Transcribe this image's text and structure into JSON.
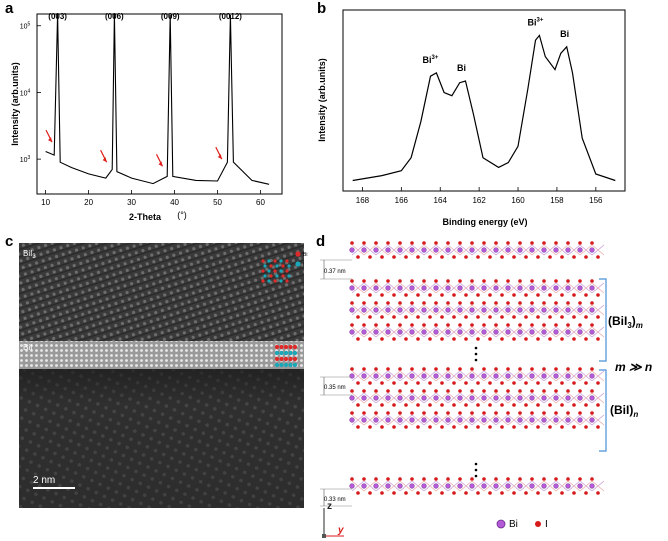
{
  "figure": {
    "panel_labels": [
      "a",
      "b",
      "c",
      "d"
    ]
  },
  "panel_a": {
    "ylabel": "Intensity (arb.units)",
    "xlabel": "2-Theta",
    "xunit": "(°)",
    "xticks": [
      "10",
      "20",
      "30",
      "40",
      "50",
      "60"
    ],
    "ytick_base": "10",
    "ytick_exps": [
      "3",
      "4",
      "5"
    ],
    "peak_labels": [
      "(003)",
      "(006)",
      "(009)",
      "(0012)"
    ],
    "arrow_color": "#e0201b"
  },
  "panel_b": {
    "ylabel": "Intensity (arb.units)",
    "xlabel": "Binding energy (eV)",
    "xticks": [
      "168",
      "166",
      "164",
      "162",
      "160",
      "158",
      "156"
    ],
    "peak_labels": [
      {
        "base": "Bi",
        "sup": "3+"
      },
      {
        "base": "Bi",
        "sup": ""
      },
      {
        "base": "Bi",
        "sup": "3+"
      },
      {
        "base": "Bi",
        "sup": ""
      }
    ]
  },
  "panel_c": {
    "label_top": "BiI",
    "label_top_sub": "3",
    "label_mid": "BiI",
    "legend": [
      "Bi",
      "I"
    ],
    "scalebar": "2 nm",
    "colors": {
      "bi": "#e02a2a",
      "i": "#1aa7b8"
    }
  },
  "panel_d": {
    "spacings": [
      "0.37 nm",
      "0.35 nm",
      "0.33 nm"
    ],
    "brace_top": {
      "base": "(BiI",
      "sub": "3",
      "close": ")",
      "var": "m"
    },
    "relation": "m ≫ n",
    "brace_bottom": {
      "base": "(BiI)",
      "var": "n"
    },
    "axis_z": "z",
    "axis_y": "y",
    "legend": [
      "Bi",
      "I"
    ],
    "colors": {
      "bi": "#b35ad6",
      "i": "#d8191a",
      "axis_z": "#2a2ad6",
      "axis_y": "#d8191a",
      "brace": "#4a90d9"
    }
  },
  "chart_data": [
    {
      "type": "line",
      "title": "",
      "xlabel": "2-Theta (°)",
      "ylabel": "Intensity (arb.units)",
      "yscale": "log",
      "xlim": [
        8,
        65
      ],
      "ylim": [
        300,
        150000
      ],
      "series": [
        {
          "x": [
            10,
            12,
            12.8,
            13.4,
            16,
            20,
            24,
            25.5,
            26,
            26.6,
            30,
            35,
            38.3,
            39,
            39.6,
            45,
            50,
            52.3,
            53,
            53.7,
            58,
            62
          ],
          "values": [
            1300,
            1150,
            150000,
            900,
            750,
            600,
            520,
            700,
            150000,
            650,
            520,
            430,
            550,
            145000,
            550,
            480,
            470,
            900,
            145000,
            900,
            480,
            420
          ]
        }
      ],
      "annotations": [
        "(003)",
        "(006)",
        "(009)",
        "(0012)"
      ]
    },
    {
      "type": "line",
      "title": "",
      "xlabel": "Binding energy (eV)",
      "ylabel": "Intensity (arb.units)",
      "xlim": [
        169,
        154.5
      ],
      "x_reversed": true,
      "series": [
        {
          "x": [
            168.5,
            167,
            166,
            165.5,
            165,
            164.5,
            164.2,
            163.8,
            163.4,
            163,
            162.7,
            162.3,
            161.8,
            161,
            160.5,
            160,
            159.5,
            159.1,
            158.9,
            158.6,
            158.1,
            157.8,
            157.5,
            157.2,
            156.7,
            156,
            155
          ],
          "values": [
            0.04,
            0.07,
            0.1,
            0.18,
            0.4,
            0.68,
            0.7,
            0.58,
            0.56,
            0.64,
            0.65,
            0.45,
            0.18,
            0.12,
            0.15,
            0.25,
            0.6,
            0.9,
            0.93,
            0.8,
            0.72,
            0.82,
            0.86,
            0.7,
            0.3,
            0.08,
            0.04
          ]
        }
      ],
      "annotations": [
        "Bi3+",
        "Bi",
        "Bi3+",
        "Bi"
      ]
    }
  ]
}
